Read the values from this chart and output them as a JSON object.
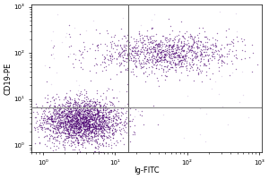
{
  "title": "",
  "xlabel": "Ig-FITC",
  "ylabel": "CD19-PE",
  "xlim": [
    0.7,
    1100
  ],
  "ylim": [
    0.7,
    1100
  ],
  "x_ticks": [
    1,
    10,
    100,
    1000
  ],
  "y_ticks": [
    1,
    10,
    100,
    1000
  ],
  "x_tick_labels": [
    "10⁰",
    "10¹",
    "10²",
    "10³"
  ],
  "y_tick_labels": [
    "10⁰",
    "10¹",
    "10²",
    "10³"
  ],
  "gate_x_log": 1.18,
  "gate_y_log": 0.83,
  "dot_color_dense": "#4a0070",
  "dot_color_sparse": "#9966bb",
  "background_color": "#ffffff",
  "cluster1_x_log_mean": 0.55,
  "cluster1_x_log_std": 0.28,
  "cluster1_y_log_mean": 0.52,
  "cluster1_y_log_std": 0.25,
  "cluster1_n": 2200,
  "cluster2_x_log_mean": 1.7,
  "cluster2_x_log_std": 0.5,
  "cluster2_y_log_mean": 2.0,
  "cluster2_y_log_std": 0.22,
  "cluster2_n": 1100,
  "sparse_n": 60,
  "dot_size": 1.0,
  "alpha_dense": 0.55,
  "alpha_sparse": 0.25
}
